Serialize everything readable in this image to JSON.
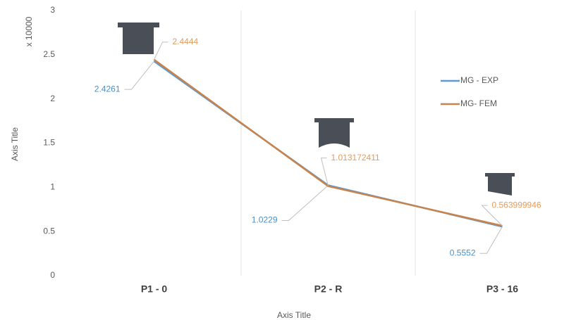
{
  "chart_data": {
    "type": "line",
    "categories": [
      "P1 - 0",
      "P2 - R",
      "P3 - 16"
    ],
    "series": [
      {
        "name": "MG - EXP",
        "color": "#5b9bd5",
        "label_color": "#4a8fc4",
        "values": [
          2.4261,
          1.0229,
          0.5552
        ]
      },
      {
        "name": "MG- FEM",
        "color": "#c9834a",
        "label_color": "#e39c5c",
        "values": [
          2.4444,
          1.013172411,
          0.563999946
        ]
      }
    ],
    "ylim": [
      0,
      3
    ],
    "yticks": [
      0,
      0.5,
      1,
      1.5,
      2,
      2.5,
      3
    ],
    "y_display_unit": "x 10000",
    "y_title": "Axis Title",
    "x_title": "Axis Title"
  }
}
